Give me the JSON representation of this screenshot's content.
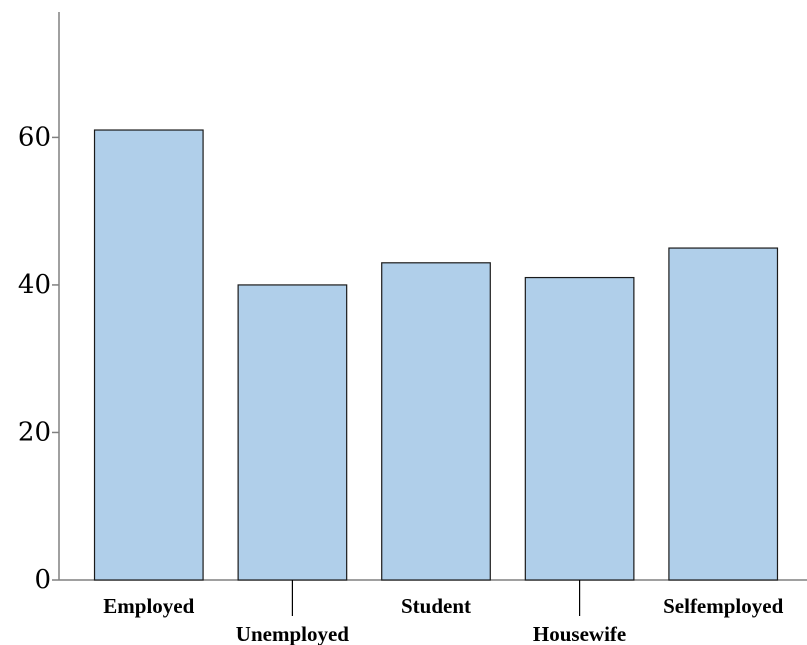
{
  "chart_data": {
    "type": "bar",
    "categories": [
      "Employed",
      "Unemployed",
      "Student",
      "Housewife",
      "Selfemployed"
    ],
    "values": [
      61,
      40,
      43,
      41,
      45
    ],
    "ylim": [
      0,
      77
    ],
    "yticks": [
      0,
      20,
      40,
      60
    ],
    "ytick_labels": [
      "0",
      "20",
      "40",
      "60"
    ],
    "grid": false,
    "legend": "none",
    "title": "",
    "xlabel": "",
    "ylabel": "",
    "colors": {
      "bar_fill": "#b0cfea",
      "bar_stroke": "#1a1a1a",
      "axis": "#808080"
    }
  }
}
